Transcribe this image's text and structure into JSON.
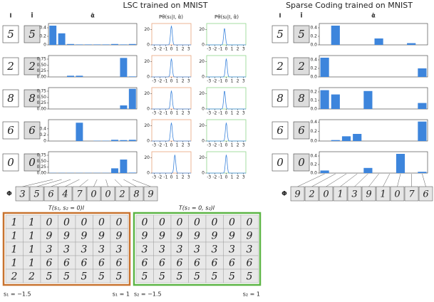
{
  "lsc": {
    "title": "LSC trained on MNIST",
    "headers": {
      "image": "I",
      "recon": "Î",
      "alpha": "α̂",
      "p1": "Pθ(s₁|I, α̂)",
      "p2": "Pθ(s₂|I, α̂)"
    },
    "density": {
      "xlim": [
        -3.4,
        3.4
      ],
      "xticks": [
        -3,
        -2,
        -1,
        0,
        1,
        2,
        3
      ],
      "ylim": [
        0,
        28
      ],
      "yticks": [
        0,
        20
      ]
    },
    "rows": [
      {
        "digit": "5",
        "recon": "5",
        "ylim": [
          0,
          0.5
        ],
        "yticks": [
          0,
          0.2,
          0.4
        ],
        "alpha": [
          0.45,
          0.27,
          0.02,
          0.01,
          0.01,
          0.01,
          0.01,
          0.02,
          0.01,
          0.02
        ],
        "s1": {
          "mu": 0,
          "height": 25
        },
        "s2": {
          "mu": -0.3,
          "height": 22
        }
      },
      {
        "digit": "2",
        "recon": "2",
        "ylim": [
          0,
          0.9
        ],
        "yticks": [
          {
            "value": 0,
            "label": "0.00"
          },
          {
            "value": 0.25,
            "label": "0.25"
          },
          {
            "value": 0.5,
            "label": "0.50"
          },
          {
            "value": 0.75,
            "label": "0.75"
          }
        ],
        "alpha": [
          0,
          0,
          0.05,
          0.05,
          0,
          0,
          0,
          0,
          0.8,
          0.02
        ],
        "s1": {
          "mu": 0,
          "height": 24
        },
        "s2": {
          "mu": 0,
          "height": 24
        }
      },
      {
        "digit": "8",
        "recon": "8",
        "ylim": [
          0,
          0.9
        ],
        "yticks": [
          {
            "value": 0,
            "label": "0.00"
          },
          {
            "value": 0.25,
            "label": "0.25"
          },
          {
            "value": 0.5,
            "label": "0.50"
          },
          {
            "value": 0.75,
            "label": "0.75"
          }
        ],
        "alpha": [
          0,
          0,
          0,
          0,
          0,
          0,
          0,
          0,
          0.15,
          0.85
        ],
        "s1": {
          "mu": 0,
          "height": 24
        },
        "s2": {
          "mu": -0.3,
          "height": 24
        }
      },
      {
        "digit": "6",
        "recon": "6",
        "ylim": [
          0,
          0.7
        ],
        "yticks": [
          0,
          0.2,
          0.4
        ],
        "alpha": [
          0,
          0,
          0,
          0.6,
          0,
          0.01,
          0.01,
          0.04,
          0.03,
          0.04
        ],
        "s1": {
          "mu": 0,
          "height": 24
        },
        "s2": {
          "mu": 0,
          "height": 24
        }
      },
      {
        "digit": "0",
        "recon": "0",
        "ylim": [
          0,
          0.9
        ],
        "yticks": [
          {
            "value": 0,
            "label": "0.00"
          },
          {
            "value": 0.25,
            "label": "0.25"
          },
          {
            "value": 0.5,
            "label": "0.50"
          },
          {
            "value": 0.75,
            "label": "0.75"
          }
        ],
        "alpha": [
          0.01,
          0.01,
          0.01,
          0.01,
          0.01,
          0.01,
          0.01,
          0.2,
          0.57,
          0.02
        ],
        "s1": {
          "mu": 0.6,
          "height": 24
        },
        "s2": {
          "mu": 0,
          "height": 24
        }
      }
    ],
    "phi_label": "Φ",
    "phi": [
      "3",
      "5",
      "6",
      "4",
      "7",
      "0",
      "0",
      "2",
      "8",
      "9"
    ]
  },
  "sc": {
    "title": "Sparse Coding trained on MNIST",
    "headers": {
      "image": "I",
      "recon": "Î",
      "alpha": "α̂"
    },
    "rows": [
      {
        "digit": "5",
        "recon": "5",
        "ylim": [
          0,
          0.5
        ],
        "yticks": [
          {
            "value": 0,
            "label": "0.0"
          },
          {
            "value": 0.2,
            "label": "0.2"
          },
          {
            "value": 0.4,
            "label": "0.4"
          }
        ],
        "alpha": [
          0,
          0.45,
          0,
          0,
          0,
          0.15,
          0,
          0,
          0.04,
          0
        ]
      },
      {
        "digit": "2",
        "recon": "2",
        "ylim": [
          0,
          0.5
        ],
        "yticks": [
          {
            "value": 0,
            "label": "0.0"
          },
          {
            "value": 0.2,
            "label": "0.2"
          },
          {
            "value": 0.4,
            "label": "0.4"
          }
        ],
        "alpha": [
          0.45,
          0,
          0,
          0,
          0,
          0,
          0,
          0,
          0,
          0.2
        ]
      },
      {
        "digit": "8",
        "recon": "8",
        "ylim": [
          0,
          0.25
        ],
        "yticks": [
          {
            "value": 0,
            "label": "0.0"
          },
          {
            "value": 0.1,
            "label": "0.1"
          },
          {
            "value": 0.2,
            "label": "0.2"
          }
        ],
        "alpha": [
          0.22,
          0.17,
          0,
          0,
          0.21,
          0,
          0,
          0,
          0,
          0.07
        ]
      },
      {
        "digit": "6",
        "recon": "6",
        "ylim": [
          0,
          0.45
        ],
        "yticks": [
          {
            "value": 0,
            "label": "0.0"
          },
          {
            "value": 0.2,
            "label": "0.2"
          },
          {
            "value": 0.4,
            "label": "0.4"
          }
        ],
        "alpha": [
          0,
          0.02,
          0.1,
          0.15,
          0,
          0,
          0,
          0,
          0,
          0.41
        ]
      },
      {
        "digit": "0",
        "recon": "0",
        "ylim": [
          0,
          0.5
        ],
        "yticks": [
          {
            "value": 0,
            "label": "0.0"
          },
          {
            "value": 0.2,
            "label": "0.2"
          },
          {
            "value": 0.4,
            "label": "0.4"
          }
        ],
        "alpha": [
          0.06,
          0,
          0,
          0,
          0.12,
          0,
          0,
          0.45,
          0,
          0.03
        ]
      }
    ],
    "phi_label": "Φ",
    "phi": [
      "9",
      "2",
      "0",
      "1",
      "3",
      "9",
      "1",
      "0",
      "7",
      "6"
    ]
  },
  "transforms": [
    {
      "title": "T(s₁, s₂ = 0)I",
      "left_label": "s₁ = −1.5",
      "right_label": "s₁ = 1",
      "rows": [
        [
          "1",
          "1",
          "0",
          "0",
          "0",
          "0",
          "0"
        ],
        [
          "1",
          "1",
          "9",
          "9",
          "9",
          "9",
          "9"
        ],
        [
          "1",
          "1",
          "3",
          "3",
          "3",
          "3",
          "3"
        ],
        [
          "1",
          "1",
          "6",
          "6",
          "6",
          "6",
          "6"
        ],
        [
          "2",
          "2",
          "5",
          "5",
          "5",
          "5",
          "5"
        ]
      ]
    },
    {
      "title": "T(s₁ = 0, s₂)I",
      "left_label": "s₂ = −1.5",
      "right_label": "s₂ = 1",
      "rows": [
        [
          "0",
          "0",
          "0",
          "0",
          "0",
          "0",
          "0"
        ],
        [
          "9",
          "9",
          "9",
          "9",
          "9",
          "9",
          "9"
        ],
        [
          "3",
          "3",
          "3",
          "3",
          "3",
          "3",
          "3"
        ],
        [
          "6",
          "6",
          "6",
          "6",
          "6",
          "6",
          "6"
        ],
        [
          "5",
          "5",
          "5",
          "5",
          "5",
          "5",
          "5"
        ]
      ]
    }
  ]
}
